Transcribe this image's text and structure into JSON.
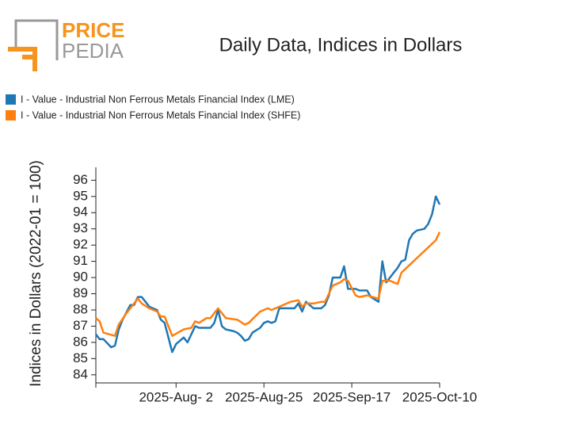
{
  "logo": {
    "top": "PRICE",
    "bottom": "PEDIA"
  },
  "chart_data": {
    "type": "line",
    "title": "Daily Data, Indices in Dollars",
    "ylabel": "Indices in Dollars (2022-01 = 100)",
    "xlim": [
      "2025-07-12",
      "2025-10-10"
    ],
    "xticks": [
      {
        "value": "2025-08-02",
        "label": "2025-Aug- 2"
      },
      {
        "value": "2025-08-25",
        "label": "2025-Aug-25"
      },
      {
        "value": "2025-09-17",
        "label": "2025-Sep-17"
      },
      {
        "value": "2025-10-10",
        "label": "2025-Oct-10"
      }
    ],
    "ylim": [
      83.5,
      96.8
    ],
    "yticks": [
      84,
      85,
      86,
      87,
      88,
      89,
      90,
      91,
      92,
      93,
      94,
      95,
      96
    ],
    "legend": "top-left",
    "series": [
      {
        "name": "I - Value - Industrial Non Ferrous Metals Financial Index (LME)",
        "color": "#1f77b4",
        "x": [
          "2025-07-12",
          "2025-07-13",
          "2025-07-14",
          "2025-07-16",
          "2025-07-17",
          "2025-07-18",
          "2025-07-19",
          "2025-07-21",
          "2025-07-22",
          "2025-07-23",
          "2025-07-24",
          "2025-07-25",
          "2025-07-26",
          "2025-07-28",
          "2025-07-29",
          "2025-07-30",
          "2025-08-01",
          "2025-08-02",
          "2025-08-04",
          "2025-08-05",
          "2025-08-07",
          "2025-08-08",
          "2025-08-09",
          "2025-08-11",
          "2025-08-12",
          "2025-08-13",
          "2025-08-14",
          "2025-08-15",
          "2025-08-17",
          "2025-08-18",
          "2025-08-19",
          "2025-08-20",
          "2025-08-21",
          "2025-08-22",
          "2025-08-24",
          "2025-08-25",
          "2025-08-26",
          "2025-08-27",
          "2025-08-28",
          "2025-08-29",
          "2025-08-30",
          "2025-09-02",
          "2025-09-03",
          "2025-09-04",
          "2025-09-05",
          "2025-09-06",
          "2025-09-07",
          "2025-09-09",
          "2025-09-10",
          "2025-09-11",
          "2025-09-12",
          "2025-09-14",
          "2025-09-15",
          "2025-09-16",
          "2025-09-18",
          "2025-09-19",
          "2025-09-21",
          "2025-09-22",
          "2025-09-24",
          "2025-09-25",
          "2025-09-26",
          "2025-09-27",
          "2025-09-28",
          "2025-09-29",
          "2025-09-30",
          "2025-10-01",
          "2025-10-02",
          "2025-10-03",
          "2025-10-04",
          "2025-10-06",
          "2025-10-07",
          "2025-10-08",
          "2025-10-09",
          "2025-10-10"
        ],
        "values": [
          86.5,
          86.2,
          86.2,
          85.7,
          85.8,
          86.8,
          87.4,
          88.3,
          88.3,
          88.8,
          88.8,
          88.5,
          88.2,
          88.0,
          87.4,
          87.2,
          85.4,
          85.9,
          86.3,
          86.0,
          87.0,
          86.9,
          86.9,
          86.9,
          87.2,
          88.0,
          87.0,
          86.8,
          86.7,
          86.6,
          86.4,
          86.1,
          86.2,
          86.6,
          86.9,
          87.2,
          87.3,
          87.2,
          87.3,
          88.1,
          88.1,
          88.1,
          88.4,
          87.9,
          88.5,
          88.3,
          88.1,
          88.1,
          88.3,
          88.9,
          90.0,
          90.0,
          90.7,
          89.3,
          89.3,
          89.2,
          89.2,
          88.8,
          88.5,
          91.0,
          89.7,
          90.0,
          90.3,
          90.6,
          91.0,
          91.1,
          92.3,
          92.7,
          92.9,
          93.0,
          93.3,
          93.9,
          95.0,
          94.5
        ]
      },
      {
        "name": "I - Value - Industrial Non Ferrous Metals Financial Index (SHFE)",
        "color": "#ff7f0e",
        "x": [
          "2025-07-12",
          "2025-07-13",
          "2025-07-14",
          "2025-07-17",
          "2025-07-18",
          "2025-07-20",
          "2025-07-22",
          "2025-07-23",
          "2025-07-24",
          "2025-07-26",
          "2025-07-28",
          "2025-07-29",
          "2025-07-30",
          "2025-08-01",
          "2025-08-04",
          "2025-08-06",
          "2025-08-07",
          "2025-08-08",
          "2025-08-10",
          "2025-08-11",
          "2025-08-13",
          "2025-08-15",
          "2025-08-18",
          "2025-08-20",
          "2025-08-21",
          "2025-08-24",
          "2025-08-26",
          "2025-08-27",
          "2025-08-29",
          "2025-09-01",
          "2025-09-03",
          "2025-09-04",
          "2025-09-05",
          "2025-09-07",
          "2025-09-09",
          "2025-09-10",
          "2025-09-11",
          "2025-09-12",
          "2025-09-14",
          "2025-09-15",
          "2025-09-16",
          "2025-09-18",
          "2025-09-19",
          "2025-09-21",
          "2025-09-24",
          "2025-09-25",
          "2025-09-27",
          "2025-09-29",
          "2025-09-30",
          "2025-10-09",
          "2025-10-10"
        ],
        "values": [
          87.5,
          87.3,
          86.6,
          86.4,
          87.1,
          87.8,
          88.4,
          88.7,
          88.4,
          88.1,
          87.9,
          87.6,
          87.6,
          86.4,
          86.8,
          86.9,
          87.3,
          87.2,
          87.5,
          87.5,
          88.1,
          87.5,
          87.4,
          87.1,
          87.2,
          87.9,
          88.1,
          88.0,
          88.2,
          88.5,
          88.6,
          88.2,
          88.4,
          88.4,
          88.5,
          88.5,
          89.0,
          89.5,
          89.7,
          89.9,
          89.8,
          88.9,
          88.8,
          88.9,
          88.7,
          89.8,
          89.8,
          89.6,
          90.3,
          92.3,
          92.8
        ]
      }
    ]
  }
}
